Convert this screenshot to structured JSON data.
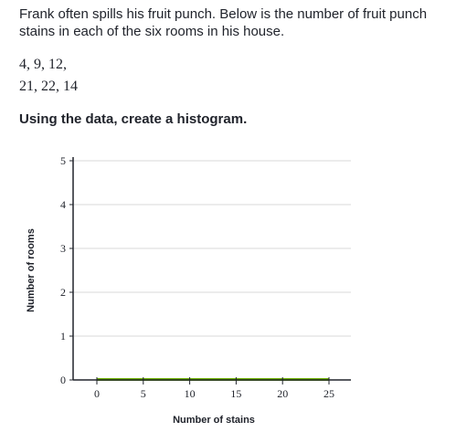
{
  "question": {
    "prompt": "Frank often spills his fruit punch. Below is the number of fruit punch stains in each of the six rooms in his house.",
    "data_line_1": "4, 9, 12,",
    "data_line_2": "21, 22, 14",
    "instruction": "Using the data, create a histogram."
  },
  "colors": {
    "bar_line": "#71b307",
    "grid": "#d8d8d8",
    "axis": "#21242c"
  },
  "chart_data": {
    "type": "bar",
    "title": "",
    "xlabel": "Number of stains",
    "ylabel": "Number of rooms",
    "xlim": [
      0,
      25
    ],
    "ylim": [
      0,
      5
    ],
    "x_ticks": [
      "0",
      "5",
      "10",
      "15",
      "20",
      "25"
    ],
    "y_ticks": [
      "0",
      "1",
      "2",
      "3",
      "4",
      "5"
    ],
    "categories": [
      "0-5",
      "5-10",
      "10-15",
      "15-20",
      "20-25"
    ],
    "values": [
      0,
      0,
      0,
      0,
      0
    ],
    "grid": true
  }
}
